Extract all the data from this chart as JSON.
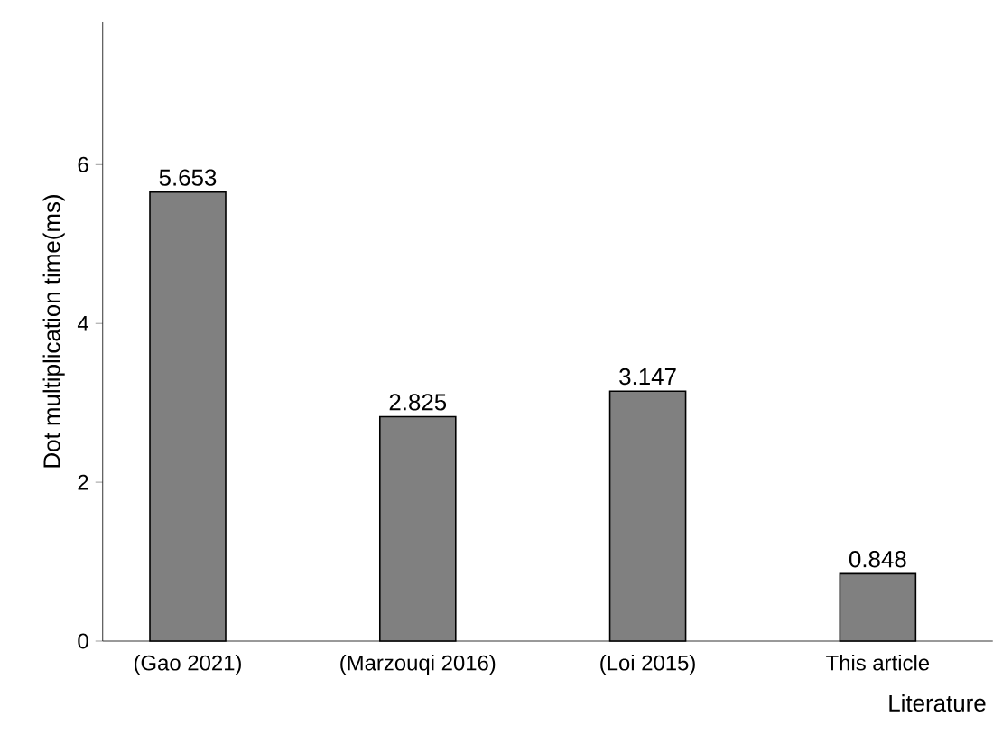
{
  "chart_data": {
    "type": "bar",
    "xlabel": "Literature",
    "ylabel": "Dot multiplication time(ms)",
    "categories": [
      "(Gao 2021)",
      "(Marzouqi 2016)",
      "(Loi 2015)",
      "This article"
    ],
    "values": [
      5.653,
      2.825,
      3.147,
      0.848
    ],
    "color": "#808080",
    "ylim": [
      0,
      7.8
    ],
    "yticks": [
      0,
      2,
      4,
      6
    ],
    "data_labels": true,
    "grid": false
  }
}
